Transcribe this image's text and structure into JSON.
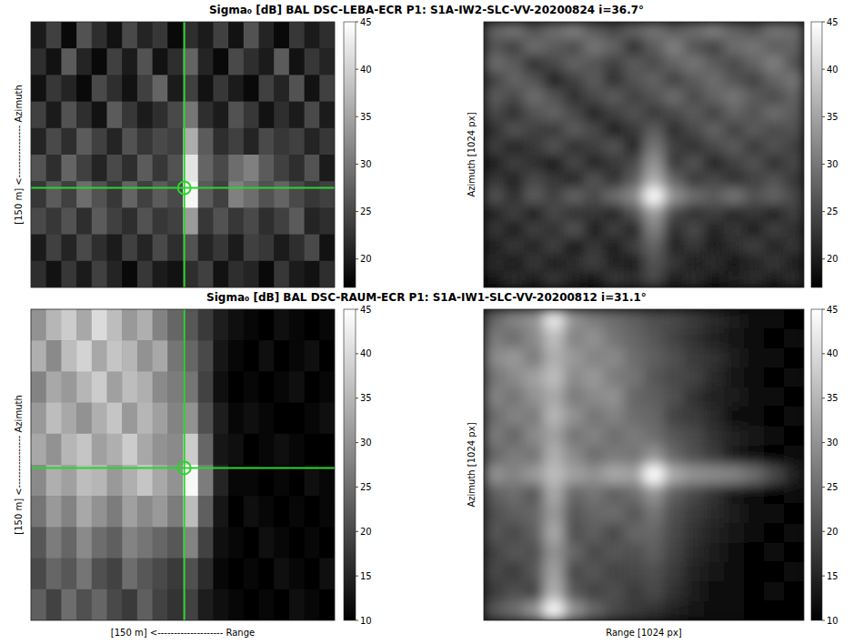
{
  "chart_data": [
    {
      "type": "heatmap",
      "title": "Sigma₀ [dB] BAL DSC-LEBA-ECR P1: S1A-IW2-SLC-VV-20200824 i=36.7°",
      "y_label": "[150 m] <---------------- Azimuth",
      "tick_labels": false,
      "target": {
        "x": 10.1,
        "y": 6.25
      },
      "colorbar": {
        "range": [
          17,
          45
        ],
        "ticks": [
          20,
          25,
          30,
          35,
          40,
          45
        ]
      },
      "cells": [
        [
          20,
          24,
          18,
          26,
          22,
          19,
          25,
          21,
          23,
          18,
          22,
          20,
          24,
          19,
          26,
          21,
          18,
          23,
          20,
          22
        ],
        [
          22,
          19,
          27,
          21,
          18,
          24,
          20,
          26,
          19,
          22,
          28,
          21,
          18,
          25,
          22,
          20,
          27,
          19,
          23,
          21
        ],
        [
          19,
          23,
          21,
          18,
          25,
          22,
          19,
          24,
          28,
          20,
          24,
          19,
          23,
          20,
          18,
          24,
          21,
          26,
          19,
          24
        ],
        [
          24,
          20,
          26,
          22,
          19,
          27,
          23,
          20,
          22,
          25,
          30,
          22,
          20,
          26,
          23,
          19,
          22,
          20,
          25,
          20
        ],
        [
          21,
          25,
          22,
          27,
          24,
          21,
          26,
          23,
          25,
          24,
          36,
          27,
          22,
          24,
          21,
          25,
          23,
          24,
          21,
          23
        ],
        [
          26,
          22,
          28,
          24,
          21,
          25,
          22,
          27,
          23,
          26,
          42,
          28,
          25,
          29,
          31,
          27,
          24,
          22,
          26,
          20
        ],
        [
          23,
          27,
          24,
          29,
          26,
          23,
          28,
          24,
          27,
          25,
          44,
          27,
          24,
          31,
          29,
          26,
          28,
          25,
          23,
          24
        ],
        [
          25,
          23,
          26,
          22,
          27,
          24,
          22,
          26,
          23,
          24,
          34,
          23,
          26,
          23,
          25,
          22,
          24,
          27,
          21,
          22
        ],
        [
          20,
          24,
          21,
          25,
          22,
          20,
          24,
          21,
          25,
          22,
          26,
          21,
          23,
          20,
          24,
          23,
          20,
          22,
          25,
          19
        ],
        [
          22,
          19,
          23,
          20,
          24,
          21,
          18,
          23,
          20,
          19,
          22,
          24,
          19,
          22,
          21,
          18,
          23,
          20,
          19,
          22
        ]
      ]
    },
    {
      "type": "heatmap",
      "y_label": "Azimuth [1024 px]",
      "tick_labels": false,
      "colorbar": {
        "range": [
          17,
          45
        ],
        "ticks": [
          20,
          25,
          30,
          35,
          40,
          45
        ]
      },
      "cells": [
        [
          28,
          30,
          26,
          29,
          31,
          27,
          25,
          28,
          30,
          27,
          29,
          31,
          28,
          26,
          30,
          29
        ],
        [
          26,
          24,
          29,
          27,
          25,
          30,
          28,
          22,
          27,
          31,
          26,
          24,
          29,
          30,
          27,
          28
        ],
        [
          29,
          27,
          22,
          25,
          28,
          26,
          24,
          27,
          25,
          28,
          30,
          27,
          25,
          28,
          31,
          26
        ],
        [
          24,
          28,
          26,
          20,
          24,
          27,
          22,
          26,
          28,
          24,
          27,
          29,
          26,
          24,
          28,
          30
        ],
        [
          27,
          25,
          29,
          26,
          22,
          25,
          27,
          24,
          26,
          29,
          25,
          28,
          30,
          27,
          25,
          28
        ],
        [
          25,
          22,
          26,
          28,
          25,
          21,
          24,
          26,
          23,
          25,
          27,
          24,
          28,
          26,
          29,
          27
        ],
        [
          22,
          26,
          24,
          23,
          27,
          25,
          20,
          23,
          27,
          22,
          25,
          28,
          24,
          27,
          25,
          26
        ],
        [
          24,
          21,
          23,
          26,
          22,
          24,
          26,
          21,
          30,
          24,
          22,
          25,
          27,
          23,
          26,
          24
        ],
        [
          20,
          24,
          22,
          19,
          25,
          21,
          23,
          25,
          33,
          23,
          26,
          21,
          24,
          26,
          22,
          25
        ],
        [
          23,
          21,
          25,
          23,
          21,
          26,
          22,
          27,
          36,
          28,
          23,
          25,
          22,
          24,
          26,
          23
        ],
        [
          26,
          22,
          27,
          24,
          28,
          25,
          29,
          32,
          45,
          33,
          29,
          27,
          30,
          26,
          28,
          25
        ],
        [
          21,
          24,
          20,
          25,
          22,
          23,
          21,
          26,
          34,
          25,
          22,
          24,
          21,
          23,
          20,
          24
        ],
        [
          23,
          20,
          24,
          22,
          26,
          20,
          24,
          21,
          31,
          22,
          25,
          21,
          23,
          20,
          24,
          22
        ],
        [
          20,
          23,
          21,
          24,
          19,
          23,
          20,
          24,
          28,
          21,
          23,
          20,
          22,
          24,
          21,
          23
        ],
        [
          22,
          19,
          23,
          20,
          22,
          24,
          21,
          20,
          26,
          23,
          20,
          22,
          19,
          21,
          23,
          20
        ],
        [
          19,
          22,
          20,
          23,
          21,
          19,
          23,
          22,
          25,
          20,
          22,
          19,
          21,
          22,
          20,
          22
        ]
      ]
    },
    {
      "type": "heatmap",
      "title": "Sigma₀ [dB] BAL DSC-RAUM-ECR P1: S1A-IW1-SLC-VV-20200812 i=31.1°",
      "y_label": "[150 m] <---------------- Azimuth",
      "x_label": "[150 m] <-------------------- Range",
      "tick_labels": false,
      "target": {
        "x": 10.1,
        "y": 5.1
      },
      "colorbar": {
        "range": [
          10,
          45
        ],
        "ticks": [
          10,
          15,
          20,
          25,
          30,
          35,
          40,
          45
        ]
      },
      "cells": [
        [
          30,
          35,
          38,
          33,
          40,
          36,
          31,
          34,
          28,
          24,
          22,
          18,
          14,
          12,
          11,
          10,
          12,
          11,
          10,
          11
        ],
        [
          34,
          29,
          36,
          39,
          33,
          37,
          35,
          30,
          33,
          26,
          24,
          20,
          13,
          11,
          10,
          12,
          10,
          11,
          12,
          10
        ],
        [
          28,
          33,
          31,
          35,
          38,
          32,
          36,
          34,
          29,
          27,
          26,
          19,
          12,
          10,
          11,
          10,
          11,
          12,
          10,
          11
        ],
        [
          31,
          36,
          33,
          30,
          34,
          37,
          31,
          35,
          32,
          28,
          30,
          21,
          14,
          11,
          12,
          11,
          10,
          10,
          11,
          12
        ],
        [
          33,
          30,
          35,
          37,
          32,
          34,
          38,
          33,
          30,
          29,
          38,
          24,
          13,
          12,
          10,
          11,
          12,
          11,
          10,
          10
        ],
        [
          29,
          34,
          32,
          36,
          35,
          31,
          34,
          37,
          33,
          30,
          44,
          27,
          15,
          11,
          11,
          10,
          11,
          10,
          12,
          11
        ],
        [
          26,
          31,
          28,
          33,
          30,
          27,
          32,
          29,
          31,
          27,
          36,
          23,
          13,
          10,
          12,
          11,
          10,
          11,
          10,
          11
        ],
        [
          22,
          27,
          24,
          29,
          25,
          23,
          28,
          26,
          24,
          22,
          28,
          19,
          12,
          11,
          10,
          12,
          11,
          10,
          11,
          10
        ],
        [
          20,
          24,
          22,
          26,
          21,
          19,
          25,
          22,
          20,
          18,
          21,
          16,
          11,
          10,
          11,
          10,
          12,
          11,
          10,
          12
        ],
        [
          23,
          19,
          25,
          21,
          24,
          20,
          18,
          23,
          19,
          17,
          19,
          14,
          12,
          11,
          10,
          11,
          10,
          12,
          11,
          10
        ]
      ]
    },
    {
      "type": "heatmap",
      "y_label": "Azimuth [1024 px]",
      "x_label": "Range [1024 px]",
      "tick_labels": false,
      "colorbar": {
        "range": [
          10,
          45
        ],
        "ticks": [
          10,
          15,
          20,
          25,
          30,
          35,
          40,
          45
        ]
      },
      "cells": [
        [
          24,
          28,
          30,
          42,
          30,
          27,
          25,
          23,
          21,
          20,
          18,
          16,
          14,
          12,
          11,
          10
        ],
        [
          27,
          25,
          29,
          36,
          28,
          30,
          26,
          24,
          22,
          19,
          17,
          15,
          13,
          12,
          10,
          11
        ],
        [
          29,
          31,
          27,
          34,
          31,
          28,
          29,
          25,
          23,
          21,
          18,
          17,
          14,
          11,
          12,
          10
        ],
        [
          26,
          29,
          32,
          36,
          29,
          31,
          27,
          26,
          22,
          20,
          19,
          16,
          13,
          12,
          10,
          11
        ],
        [
          28,
          26,
          30,
          33,
          27,
          29,
          30,
          24,
          23,
          21,
          17,
          15,
          14,
          11,
          11,
          10
        ],
        [
          25,
          28,
          27,
          35,
          30,
          26,
          28,
          25,
          24,
          19,
          18,
          16,
          12,
          12,
          10,
          11
        ],
        [
          27,
          24,
          29,
          32,
          26,
          28,
          25,
          27,
          25,
          22,
          20,
          17,
          15,
          13,
          11,
          10
        ],
        [
          24,
          27,
          26,
          34,
          29,
          25,
          27,
          26,
          30,
          24,
          21,
          18,
          14,
          12,
          10,
          11
        ],
        [
          30,
          28,
          31,
          36,
          32,
          30,
          33,
          32,
          45,
          33,
          30,
          29,
          28,
          25,
          20,
          15
        ],
        [
          23,
          25,
          22,
          33,
          24,
          26,
          23,
          25,
          30,
          23,
          20,
          17,
          13,
          11,
          10,
          11
        ],
        [
          21,
          23,
          24,
          31,
          22,
          24,
          25,
          22,
          26,
          21,
          18,
          16,
          14,
          12,
          11,
          10
        ],
        [
          22,
          20,
          23,
          33,
          21,
          23,
          20,
          24,
          24,
          20,
          17,
          15,
          13,
          11,
          10,
          11
        ],
        [
          19,
          22,
          21,
          30,
          24,
          20,
          22,
          21,
          23,
          19,
          16,
          14,
          12,
          10,
          11,
          10
        ],
        [
          20,
          18,
          22,
          32,
          20,
          22,
          19,
          20,
          21,
          18,
          15,
          13,
          11,
          10,
          10,
          11
        ],
        [
          18,
          21,
          19,
          34,
          22,
          19,
          21,
          18,
          20,
          17,
          14,
          12,
          11,
          10,
          11,
          10
        ],
        [
          22,
          25,
          30,
          44,
          30,
          24,
          20,
          18,
          17,
          15,
          13,
          12,
          11,
          10,
          10,
          10
        ]
      ]
    }
  ]
}
